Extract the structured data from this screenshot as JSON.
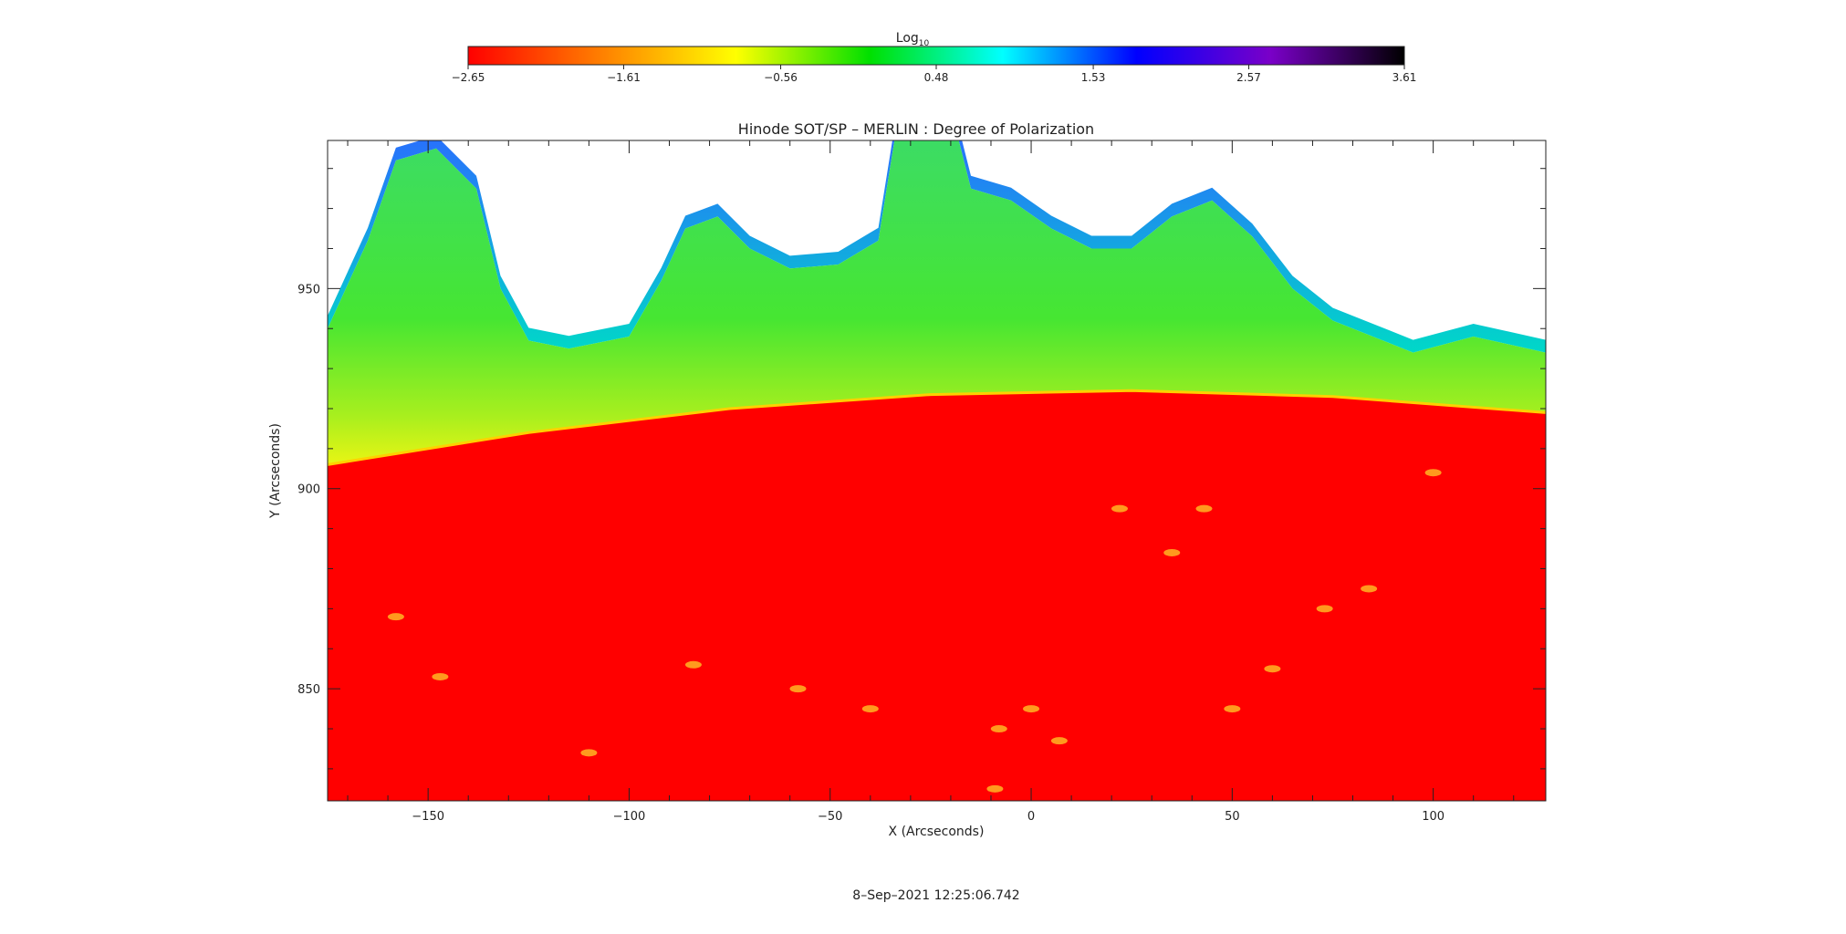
{
  "chart_data": {
    "type": "heatmap",
    "title": "Hinode SOT/SP – MERLIN : Degree of Polarization",
    "xlabel": "X (Arcseconds)",
    "ylabel": "Y (Arcseconds)",
    "xlim": [
      -175,
      128
    ],
    "ylim": [
      822,
      987
    ],
    "x_ticks": [
      -150,
      -100,
      -50,
      0,
      50,
      100
    ],
    "x_tick_labels": [
      "−150",
      "−100",
      "−50",
      "0",
      "50",
      "100"
    ],
    "y_ticks": [
      850,
      900,
      950
    ],
    "y_tick_labels": [
      "850",
      "900",
      "950"
    ],
    "colorbar": {
      "label": "Log",
      "label_subscript": "10",
      "range": [
        -2.65,
        3.61
      ],
      "ticks": [
        -2.65,
        -1.61,
        -0.56,
        0.48,
        1.53,
        2.57,
        3.61
      ],
      "tick_labels": [
        "−2.65",
        "−1.61",
        "−0.56",
        "0.48",
        "1.53",
        "2.57",
        "3.61"
      ],
      "colors": [
        "#ff0000",
        "#ff8000",
        "#ffff00",
        "#00e000",
        "#00ffff",
        "#0000ff",
        "#7a00c8",
        "#000000"
      ]
    },
    "disk_limb_y": [
      {
        "x": -175,
        "y": 906
      },
      {
        "x": -125,
        "y": 914
      },
      {
        "x": -75,
        "y": 920
      },
      {
        "x": -25,
        "y": 923.5
      },
      {
        "x": 25,
        "y": 924.5
      },
      {
        "x": 75,
        "y": 923
      },
      {
        "x": 128,
        "y": 919
      }
    ],
    "signal_boundary_y": [
      {
        "x": -175,
        "y": 940
      },
      {
        "x": -165,
        "y": 962
      },
      {
        "x": -158,
        "y": 982
      },
      {
        "x": -148,
        "y": 985
      },
      {
        "x": -138,
        "y": 975
      },
      {
        "x": -132,
        "y": 950
      },
      {
        "x": -125,
        "y": 937
      },
      {
        "x": -115,
        "y": 935
      },
      {
        "x": -100,
        "y": 938
      },
      {
        "x": -92,
        "y": 952
      },
      {
        "x": -86,
        "y": 965
      },
      {
        "x": -78,
        "y": 968
      },
      {
        "x": -70,
        "y": 960
      },
      {
        "x": -60,
        "y": 955
      },
      {
        "x": -48,
        "y": 956
      },
      {
        "x": -38,
        "y": 962
      },
      {
        "x": -34,
        "y": 987
      },
      {
        "x": -18,
        "y": 987
      },
      {
        "x": -15,
        "y": 975
      },
      {
        "x": -5,
        "y": 972
      },
      {
        "x": 5,
        "y": 965
      },
      {
        "x": 15,
        "y": 960
      },
      {
        "x": 25,
        "y": 960
      },
      {
        "x": 35,
        "y": 968
      },
      {
        "x": 45,
        "y": 972
      },
      {
        "x": 55,
        "y": 963
      },
      {
        "x": 65,
        "y": 950
      },
      {
        "x": 75,
        "y": 942
      },
      {
        "x": 85,
        "y": 938
      },
      {
        "x": 95,
        "y": 934
      },
      {
        "x": 110,
        "y": 938
      },
      {
        "x": 128,
        "y": 934
      }
    ],
    "bright_points": [
      {
        "x": 22,
        "y": 895
      },
      {
        "x": 43,
        "y": 895
      },
      {
        "x": 35,
        "y": 884
      },
      {
        "x": 73,
        "y": 870
      },
      {
        "x": 84,
        "y": 875
      },
      {
        "x": 100,
        "y": 904
      },
      {
        "x": -147,
        "y": 853
      },
      {
        "x": -84,
        "y": 856
      },
      {
        "x": -58,
        "y": 850
      },
      {
        "x": -110,
        "y": 834
      },
      {
        "x": -8,
        "y": 840
      },
      {
        "x": 7,
        "y": 837
      },
      {
        "x": -9,
        "y": 825
      },
      {
        "x": 0,
        "y": 845
      },
      {
        "x": -40,
        "y": 845
      },
      {
        "x": 50,
        "y": 845
      },
      {
        "x": 60,
        "y": 855
      },
      {
        "x": -158,
        "y": 868
      }
    ],
    "timestamp": "8–Sep–2021 12:25:06.742"
  }
}
